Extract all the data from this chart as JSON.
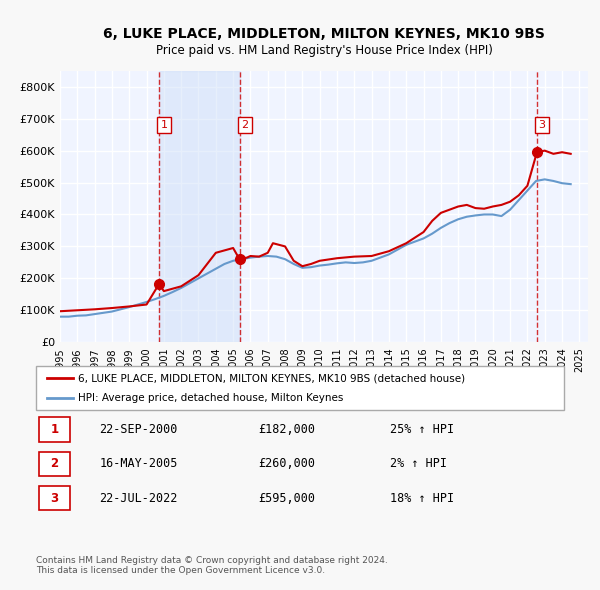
{
  "title": "6, LUKE PLACE, MIDDLETON, MILTON KEYNES, MK10 9BS",
  "subtitle": "Price paid vs. HM Land Registry's House Price Index (HPI)",
  "xlim": [
    1995.0,
    2025.5
  ],
  "ylim": [
    0,
    850000
  ],
  "yticks": [
    0,
    100000,
    200000,
    300000,
    400000,
    500000,
    600000,
    700000,
    800000
  ],
  "ytick_labels": [
    "£0",
    "£100K",
    "£200K",
    "£300K",
    "£400K",
    "£500K",
    "£600K",
    "£700K",
    "£800K"
  ],
  "xtick_years": [
    1995,
    1996,
    1997,
    1998,
    1999,
    2000,
    2001,
    2002,
    2003,
    2004,
    2005,
    2006,
    2007,
    2008,
    2009,
    2010,
    2011,
    2012,
    2013,
    2014,
    2015,
    2016,
    2017,
    2018,
    2019,
    2020,
    2021,
    2022,
    2023,
    2024,
    2025
  ],
  "background_color": "#f0f4ff",
  "plot_bg_color": "#f0f4ff",
  "grid_color": "#ffffff",
  "sale_color": "#cc0000",
  "hpi_color": "#6699cc",
  "sale_marker_color": "#cc0000",
  "marker1_x": 2000.72,
  "marker1_y": 182000,
  "marker2_x": 2005.37,
  "marker2_y": 260000,
  "marker3_x": 2022.55,
  "marker3_y": 595000,
  "vline1_x": 2000.72,
  "vline2_x": 2005.37,
  "vline3_x": 2022.55,
  "shade1_xmin": 2000.72,
  "shade1_xmax": 2005.37,
  "legend_label_sale": "6, LUKE PLACE, MIDDLETON, MILTON KEYNES, MK10 9BS (detached house)",
  "legend_label_hpi": "HPI: Average price, detached house, Milton Keynes",
  "table_data": [
    [
      "1",
      "22-SEP-2000",
      "£182,000",
      "25% ↑ HPI"
    ],
    [
      "2",
      "16-MAY-2005",
      "£260,000",
      "2% ↑ HPI"
    ],
    [
      "3",
      "22-JUL-2022",
      "£595,000",
      "18% ↑ HPI"
    ]
  ],
  "footer_line1": "Contains HM Land Registry data © Crown copyright and database right 2024.",
  "footer_line2": "This data is licensed under the Open Government Licence v3.0.",
  "hpi_data_x": [
    1995.0,
    1995.5,
    1996.0,
    1996.5,
    1997.0,
    1997.5,
    1998.0,
    1998.5,
    1999.0,
    1999.5,
    2000.0,
    2000.5,
    2001.0,
    2001.5,
    2002.0,
    2002.5,
    2003.0,
    2003.5,
    2004.0,
    2004.5,
    2005.0,
    2005.5,
    2006.0,
    2006.5,
    2007.0,
    2007.5,
    2008.0,
    2008.5,
    2009.0,
    2009.5,
    2010.0,
    2010.5,
    2011.0,
    2011.5,
    2012.0,
    2012.5,
    2013.0,
    2013.5,
    2014.0,
    2014.5,
    2015.0,
    2015.5,
    2016.0,
    2016.5,
    2017.0,
    2017.5,
    2018.0,
    2018.5,
    2019.0,
    2019.5,
    2020.0,
    2020.5,
    2021.0,
    2021.5,
    2022.0,
    2022.5,
    2023.0,
    2023.5,
    2024.0,
    2024.5
  ],
  "hpi_data_y": [
    80000,
    80000,
    83000,
    84000,
    88000,
    92000,
    96000,
    103000,
    110000,
    118000,
    126000,
    135000,
    145000,
    157000,
    170000,
    185000,
    200000,
    215000,
    230000,
    245000,
    255000,
    260000,
    265000,
    268000,
    270000,
    268000,
    260000,
    245000,
    233000,
    235000,
    240000,
    243000,
    247000,
    250000,
    248000,
    250000,
    255000,
    265000,
    275000,
    290000,
    305000,
    315000,
    325000,
    340000,
    358000,
    373000,
    385000,
    393000,
    397000,
    400000,
    400000,
    395000,
    415000,
    445000,
    475000,
    505000,
    510000,
    505000,
    498000,
    495000
  ],
  "sale_data_x": [
    1995.0,
    1996.0,
    1997.0,
    1998.0,
    1999.0,
    2000.0,
    2000.72,
    2001.0,
    2002.0,
    2003.0,
    2004.0,
    2005.0,
    2005.37,
    2005.8,
    2006.0,
    2006.5,
    2007.0,
    2007.3,
    2008.0,
    2008.5,
    2009.0,
    2009.5,
    2010.0,
    2011.0,
    2012.0,
    2013.0,
    2014.0,
    2015.0,
    2016.0,
    2016.5,
    2017.0,
    2017.5,
    2018.0,
    2018.5,
    2019.0,
    2019.5,
    2020.0,
    2020.5,
    2021.0,
    2021.5,
    2022.0,
    2022.55,
    2023.0,
    2023.5,
    2024.0,
    2024.5
  ],
  "sale_data_y": [
    97000,
    100000,
    103000,
    107000,
    112000,
    118000,
    182000,
    160000,
    175000,
    210000,
    280000,
    295000,
    260000,
    265000,
    270000,
    268000,
    280000,
    310000,
    300000,
    255000,
    238000,
    245000,
    255000,
    263000,
    268000,
    270000,
    285000,
    310000,
    345000,
    380000,
    405000,
    415000,
    425000,
    430000,
    420000,
    418000,
    425000,
    430000,
    440000,
    460000,
    490000,
    595000,
    600000,
    590000,
    595000,
    590000
  ]
}
